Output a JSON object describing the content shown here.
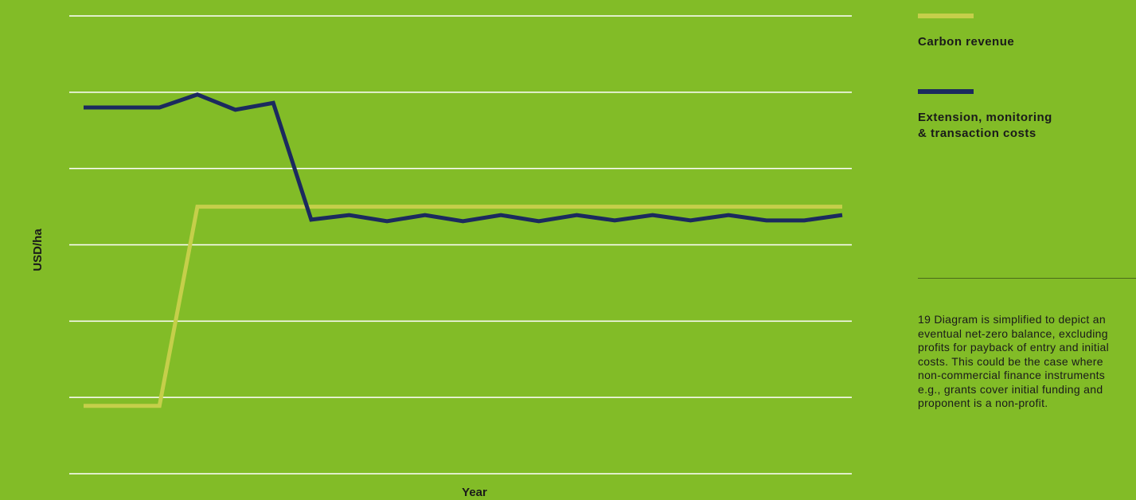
{
  "chart_data": {
    "type": "line",
    "x_label": "Year",
    "y_label": "USD/ha",
    "x": [
      0,
      1,
      2,
      3,
      4,
      5,
      6,
      7,
      8,
      9,
      10,
      11,
      12,
      13,
      14,
      15,
      16,
      17,
      18,
      19,
      20
    ],
    "xlim": [
      0,
      20
    ],
    "ylim": [
      0,
      6
    ],
    "yticks": [
      0,
      1,
      2,
      3,
      4,
      5,
      6
    ],
    "grid": true,
    "series": [
      {
        "name": "Carbon revenue",
        "color": "#c5cf4a",
        "values": [
          0.89,
          0.89,
          0.89,
          3.5,
          3.5,
          3.5,
          3.5,
          3.5,
          3.5,
          3.5,
          3.5,
          3.5,
          3.5,
          3.5,
          3.5,
          3.5,
          3.5,
          3.5,
          3.5,
          3.5,
          3.5
        ]
      },
      {
        "name": "Extension, monitoring & transaction costs",
        "color": "#1b2a5e",
        "values": [
          4.8,
          4.8,
          4.8,
          4.97,
          4.77,
          4.86,
          3.33,
          3.39,
          3.31,
          3.39,
          3.31,
          3.39,
          3.31,
          3.39,
          3.32,
          3.39,
          3.32,
          3.39,
          3.32,
          3.32,
          3.39
        ]
      }
    ],
    "footnote": "19 Diagram is simplified to depict an eventual net-zero balance, excluding profits for payback of entry and initial costs. This could be the case where non-commercial finance instruments e.g., grants cover initial funding and proponent is a non-profit."
  }
}
